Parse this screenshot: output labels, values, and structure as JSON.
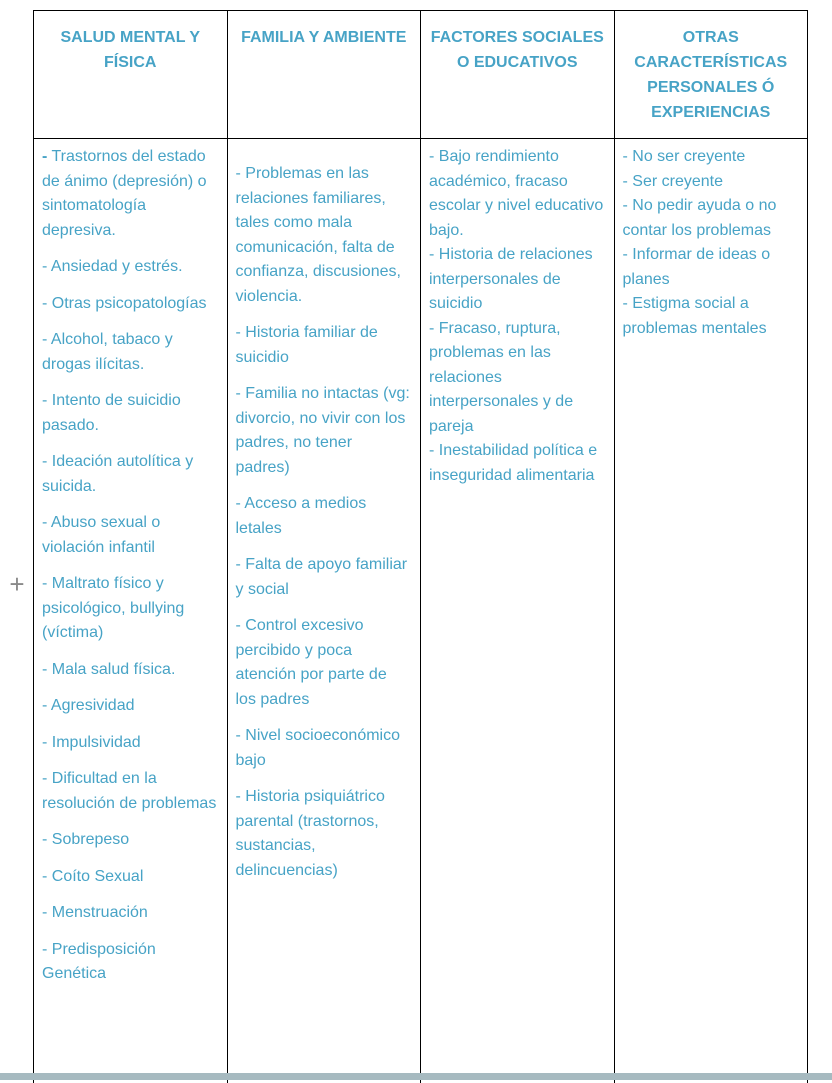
{
  "controls": {
    "add_symbol": "+"
  },
  "colors": {
    "text": "#47a3c6",
    "border": "#000000",
    "plus": "#8a8a8a",
    "bottom_bar": "#a6bac0"
  },
  "table": {
    "columns": [
      {
        "header": "SALUD MENTAL Y FÍSICA",
        "items": [
          "- Trastornos del estado de ánimo (depresión) o sintomatología depresiva.",
          "- Ansiedad y estrés.",
          "- Otras psicopatologías",
          "- Alcohol, tabaco y drogas ilícitas.",
          "- Intento de suicidio pasado.",
          "- Ideación autolítica y suicida.",
          "- Abuso sexual o violación infantil",
          "- Maltrato físico y psicológico, bullying (víctima)",
          "- Mala salud física.",
          "- Agresividad",
          "- Impulsividad",
          "- Dificultad en la resolución de problemas",
          "- Sobrepeso",
          "- Coíto Sexual",
          "- Menstruación",
          "- Predisposición Genética"
        ]
      },
      {
        "header": "FAMILIA Y AMBIENTE",
        "items": [
          "- Problemas en las relaciones familiares, tales como mala comunicación, falta de confianza, discusiones, violencia.",
          "- Historia familiar de suicidio",
          "- Familia no intactas (vg: divorcio, no vivir con los padres, no tener padres)",
          "- Acceso a medios letales",
          "- Falta de apoyo familiar y social",
          "- Control excesivo percibido y poca atención por parte de los padres",
          "- Nivel socioeconómico bajo",
          "- Historia psiquiátrico parental (trastornos, sustancias, delincuencias)"
        ]
      },
      {
        "header": "FACTORES SOCIALES O EDUCATIVOS",
        "items": [
          "- Bajo rendimiento académico, fracaso escolar y nivel educativo bajo.",
          "- Historia de relaciones interpersonales de suicidio",
          "- Fracaso, ruptura, problemas en las relaciones interpersonales y de pareja",
          "- Inestabilidad política e inseguridad alimentaria"
        ]
      },
      {
        "header": "OTRAS CARACTERÍSTICAS PERSONALES Ó EXPERIENCIAS",
        "items": [
          "- No ser creyente",
          "- Ser creyente",
          "- No pedir ayuda o no contar los problemas",
          "- Informar de ideas o planes",
          "- Estigma social a problemas mentales"
        ]
      }
    ]
  }
}
